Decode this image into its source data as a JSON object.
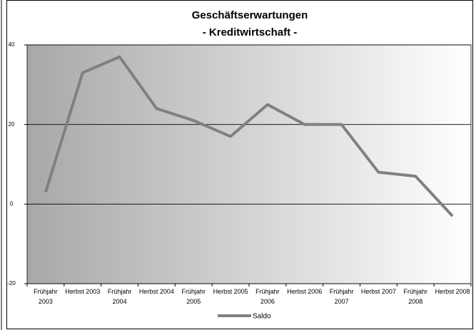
{
  "chart_data": {
    "type": "line",
    "title": "Geschäftserwartungen",
    "subtitle": "- Kreditwirtschaft -",
    "categories": [
      "Frühjahr 2003",
      "Herbst 2003",
      "Frühjahr 2004",
      "Herbst 2004",
      "Frühjahr 2005",
      "Herbst 2005",
      "Frühjahr 2006",
      "Herbst 2006",
      "Frühjahr 2007",
      "Herbst 2007",
      "Frühjahr 2008",
      "Herbst 2008"
    ],
    "series": [
      {
        "name": "Saldo",
        "color": "#808080",
        "values": [
          3,
          33,
          37,
          24,
          21,
          17,
          25,
          20,
          20,
          8,
          7,
          -3
        ]
      }
    ],
    "ylim": [
      -20,
      40
    ],
    "yticks": [
      -20,
      0,
      20,
      40
    ],
    "grid": true,
    "legend": "bottom"
  }
}
